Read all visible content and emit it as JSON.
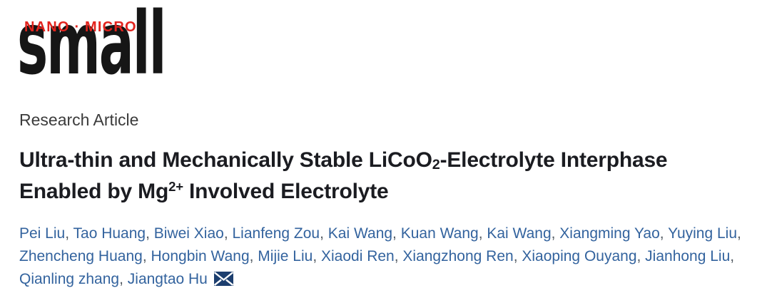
{
  "journal": {
    "tagline": "NANO · MICRO",
    "wordmark": "small"
  },
  "article_type": "Research Article",
  "title": {
    "part1": "Ultra-thin and Mechanically Stable LiCoO",
    "subscript": "2",
    "part2": "-Electrolyte Interphase Enabled by Mg",
    "superscript": "2+",
    "part3": " Involved Electrolyte"
  },
  "authors": {
    "rows": [
      [
        "Pei Liu",
        "Tao Huang",
        "Biwei Xiao",
        "Lianfeng Zou",
        "Kai Wang",
        "Kuan Wang",
        "Kai Wang",
        "Xiangming Yao",
        "Yuying Liu"
      ],
      [
        "Zhencheng Huang",
        "Hongbin Wang",
        "Mijie Liu",
        "Xiaodi Ren",
        "Xiangzhong Ren",
        "Xiaoping Ouyang",
        "Jianhong Liu"
      ],
      [
        "Qianling zhang",
        "Jiangtao Hu"
      ]
    ],
    "separator": ", ",
    "corresponding_author": "Jiangtao Hu",
    "corresponding_icon": "envelope-icon"
  },
  "colors": {
    "accent_red": "#e2231d",
    "wordmark_black": "#161616",
    "article_type_gray": "#3b3b3b",
    "title_dark": "#1b1c21",
    "author_link_blue": "#33639e",
    "separator_gray": "#545c64",
    "envelope_navy": "#1c3e6e"
  }
}
